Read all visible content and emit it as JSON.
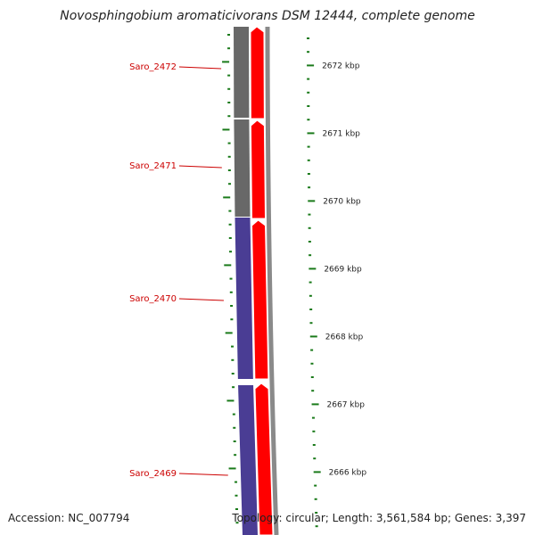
{
  "title": "Novosphingobium aromaticivorans DSM 12444, complete genome",
  "footer": {
    "accession": "Accession: NC_007794",
    "topology": "Topology: circular; Length: 3,561,584 bp; Genes: 3,397"
  },
  "colors": {
    "gene_grey": "#686868",
    "gene_blue": "#4a3d94",
    "strand_red": "#ff0000",
    "tick_green": "#1a7a1a",
    "label_red": "#cc0000",
    "backbone_grey": "#8a8a8a"
  },
  "genes": [
    {
      "name": "Saro_2472",
      "color": "gene_grey"
    },
    {
      "name": "Saro_2471",
      "color": "gene_grey"
    },
    {
      "name": "Saro_2470",
      "color": "gene_blue"
    },
    {
      "name": "Saro_2469",
      "color": "gene_blue"
    }
  ],
  "kbp_ticks": [
    {
      "label": "2672 kbp"
    },
    {
      "label": "2671 kbp"
    },
    {
      "label": "2670 kbp"
    },
    {
      "label": "2669 kbp"
    },
    {
      "label": "2668 kbp"
    },
    {
      "label": "2667 kbp"
    },
    {
      "label": "2666 kbp"
    }
  ]
}
